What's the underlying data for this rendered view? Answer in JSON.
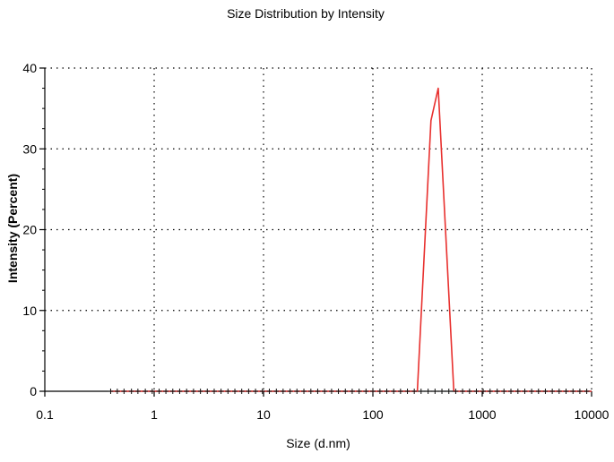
{
  "chart_data": {
    "type": "line",
    "title": "Size Distribution by Intensity",
    "xlabel": "Size (d.nm)",
    "ylabel": "Intensity (Percent)",
    "x_scale": "log",
    "xlim": [
      0.1,
      10000
    ],
    "ylim": [
      0,
      40
    ],
    "x_ticks": [
      0.1,
      1,
      10,
      100,
      1000,
      10000
    ],
    "x_tick_labels": [
      "0.1",
      "1",
      "10",
      "100",
      "1000",
      "10000"
    ],
    "y_ticks": [
      0,
      10,
      20,
      30,
      40
    ],
    "y_tick_labels": [
      "0",
      "10",
      "20",
      "30",
      "40"
    ],
    "grid": true,
    "legend": "none",
    "series": [
      {
        "color": "#e8302e",
        "x": [
          0.4,
          1,
          10,
          100,
          255,
          340,
          396,
          550,
          1000,
          10000
        ],
        "y": [
          0,
          0,
          0,
          0,
          0,
          33.5,
          37.5,
          0,
          0,
          0
        ]
      }
    ],
    "marker_series": {
      "color": "#111111",
      "x": [
        0.4,
        0.46,
        0.53,
        0.62,
        0.71,
        0.83,
        0.96,
        1.11,
        1.28,
        1.48,
        1.71,
        1.98,
        2.29,
        2.65,
        3.06,
        3.54,
        4.09,
        4.73,
        5.47,
        6.32,
        7.31,
        8.45,
        9.77,
        11.3,
        13.1,
        15.1,
        17.5,
        20.2,
        23.4,
        27.1,
        31.3,
        36.2,
        41.9,
        48.4,
        56.0,
        64.7,
        74.8,
        86.5,
        100,
        116,
        134,
        155,
        179,
        207,
        239,
        276,
        320,
        370,
        428,
        495,
        572,
        661,
        765,
        884,
        1020,
        1180,
        1370,
        1580,
        1830,
        2120,
        2450,
        2830,
        3270,
        3780,
        4370,
        5050,
        5840,
        6760,
        7810,
        9030
      ],
      "y": 0
    },
    "axis_color": "#000000",
    "grid_color": "#000000"
  }
}
